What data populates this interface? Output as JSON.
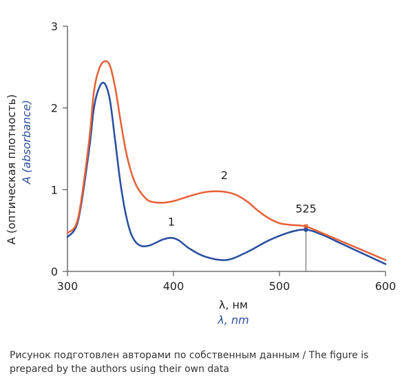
{
  "chart_data": {
    "type": "line",
    "title": "",
    "xlabel": "λ, нм",
    "xlabel_en": "λ, nm",
    "ylabel": "A (оптическая плотность)",
    "ylabel_en": "A (absorbance)",
    "xlim": [
      300,
      600
    ],
    "ylim": [
      0,
      3
    ],
    "xticks": [
      300,
      400,
      500,
      600
    ],
    "yticks": [
      0,
      1,
      2,
      3
    ],
    "grid": false,
    "series": [
      {
        "name": "1",
        "color": "#2a4fa0",
        "x": [
          300,
          310,
          320,
          325,
          330,
          335,
          340,
          345,
          350,
          355,
          360,
          365,
          370,
          375,
          380,
          390,
          398,
          405,
          415,
          430,
          450,
          470,
          490,
          510,
          525,
          540,
          560,
          580,
          600
        ],
        "y": [
          0.42,
          0.62,
          1.45,
          2.0,
          2.25,
          2.3,
          2.1,
          1.6,
          1.08,
          0.7,
          0.46,
          0.35,
          0.31,
          0.31,
          0.33,
          0.39,
          0.41,
          0.38,
          0.28,
          0.18,
          0.14,
          0.24,
          0.38,
          0.48,
          0.51,
          0.45,
          0.33,
          0.21,
          0.09
        ]
      },
      {
        "name": "2",
        "color": "#e8623a",
        "x": [
          300,
          310,
          320,
          325,
          330,
          335,
          340,
          345,
          350,
          355,
          360,
          365,
          370,
          375,
          380,
          390,
          400,
          410,
          420,
          430,
          440,
          450,
          460,
          470,
          480,
          490,
          500,
          510,
          525,
          540,
          560,
          580,
          600
        ],
        "y": [
          0.47,
          0.65,
          1.55,
          2.2,
          2.48,
          2.57,
          2.52,
          2.25,
          1.85,
          1.48,
          1.22,
          1.05,
          0.95,
          0.88,
          0.85,
          0.84,
          0.86,
          0.9,
          0.94,
          0.97,
          0.98,
          0.97,
          0.93,
          0.85,
          0.74,
          0.65,
          0.59,
          0.57,
          0.55,
          0.47,
          0.36,
          0.25,
          0.14
        ]
      }
    ],
    "annotations": [
      {
        "text": "1",
        "x": 398,
        "y": 0.56
      },
      {
        "text": "2",
        "x": 448,
        "y": 1.13
      },
      {
        "text": "525",
        "x": 525,
        "y": 0.72
      }
    ],
    "marker_line": {
      "x": 525,
      "y_top": 0.55
    }
  },
  "caption": "Рисунок подготовлен авторами по собственным данным / The figure is prepared by the authors using their own data"
}
